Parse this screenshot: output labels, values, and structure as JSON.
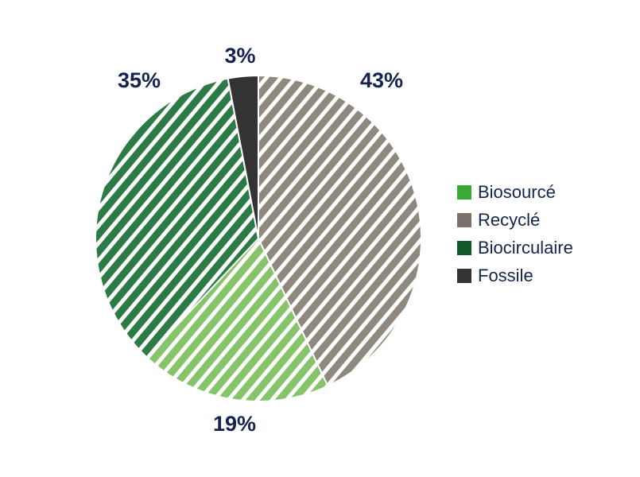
{
  "chart_data": {
    "type": "pie",
    "categories": [
      "Recyclé",
      "Biosourcé",
      "Biocirculaire",
      "Fossile"
    ],
    "values": [
      43,
      19,
      35,
      3
    ],
    "value_labels": [
      "43%",
      "19%",
      "35%",
      "3%"
    ],
    "colors": [
      "#8f887e",
      "#86c46a",
      "#2c7a45",
      "#333333"
    ],
    "legend_colors": [
      "#7a7268",
      "#3aaa35",
      "#0f5a28",
      "#333333"
    ],
    "hatched": true
  }
}
